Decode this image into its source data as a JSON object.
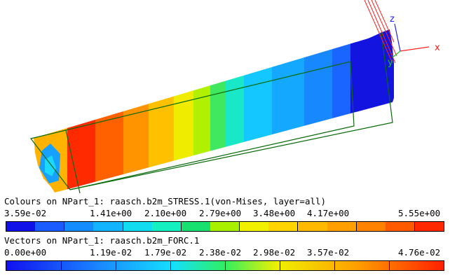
{
  "axes": {
    "x": "x",
    "y": "y",
    "z": "z"
  },
  "colours_legend": {
    "title": "Colours on NPart_1: raasch.b2m_STRESS.1(von-Mises, layer=all)",
    "ticks": [
      "3.59e-02",
      "1.41e+00",
      "2.10e+00",
      "2.79e+00",
      "3.48e+00",
      "4.17e+00",
      "5.55e+00"
    ],
    "colors": [
      "#1010e8",
      "#1a5cff",
      "#138cff",
      "#12b4ff",
      "#12dcf0",
      "#15f0c0",
      "#18e070",
      "#a8f000",
      "#f0f000",
      "#ffd400",
      "#ffba00",
      "#ffa000",
      "#ff8200",
      "#ff5a00",
      "#ff2800"
    ]
  },
  "vectors_legend": {
    "title": "Vectors on NPart_1: raasch.b2m_FORC.1",
    "ticks": [
      "0.00e+00",
      "1.19e-02",
      "1.79e-02",
      "2.38e-02",
      "2.98e-02",
      "3.57e-02",
      "4.76e-02"
    ]
  }
}
